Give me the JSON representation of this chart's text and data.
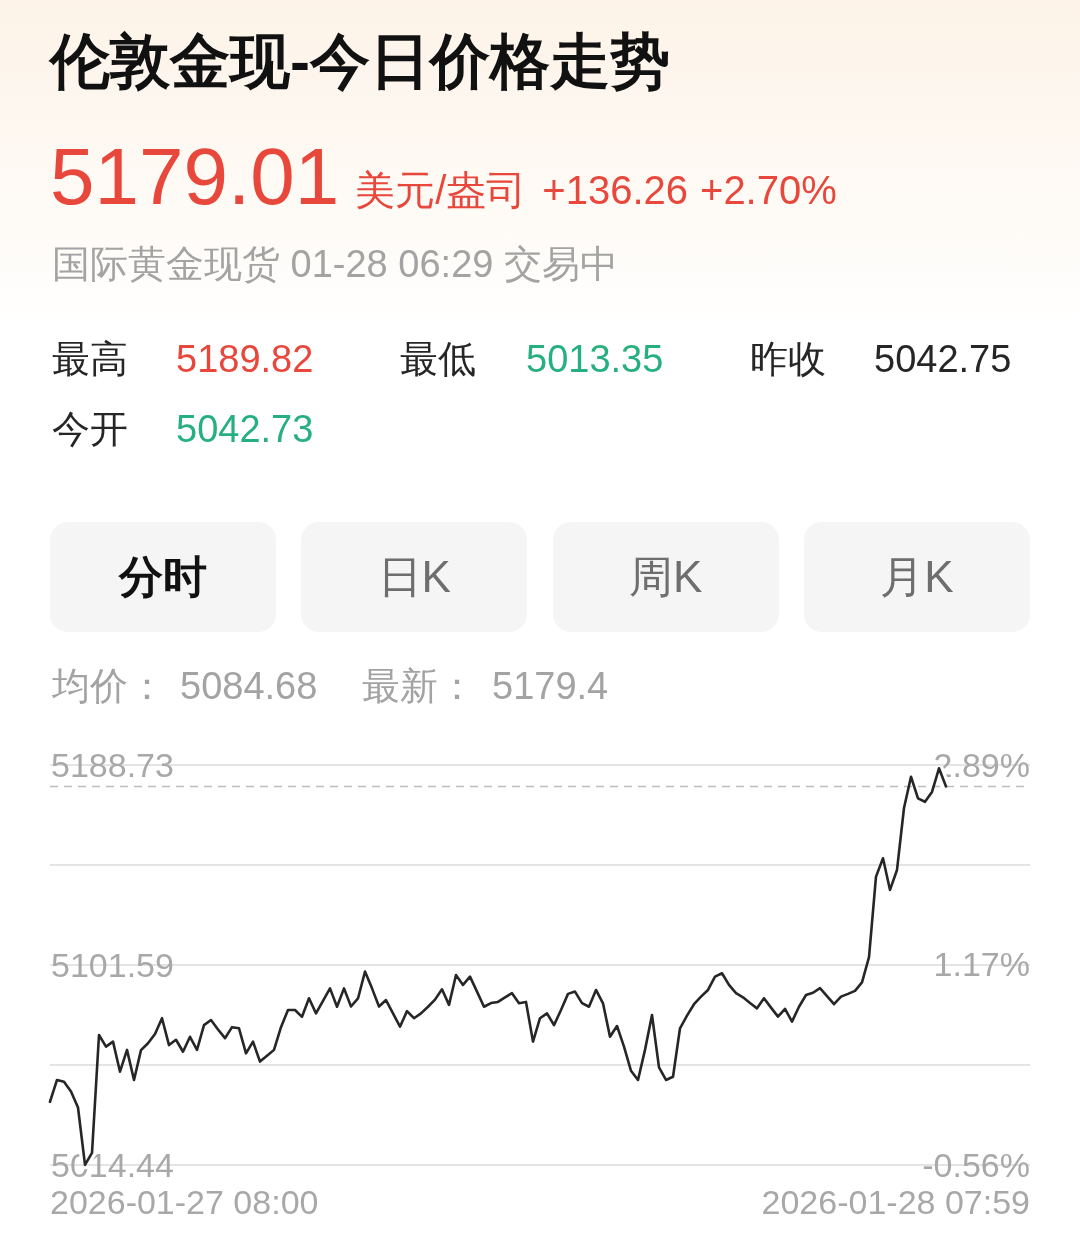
{
  "chart_data": {
    "type": "line",
    "title": "伦敦金现-今日价格走势",
    "subtitle": "国际黄金现货 01-28 06:29 交易中",
    "annotations": [
      "5179.01",
      "美元/盎司",
      "+136.26",
      "+2.70%",
      "最高",
      "5189.82",
      "最低",
      "5013.35",
      "昨收",
      "5042.75",
      "今开",
      "5042.73",
      "分时",
      "日K",
      "周K",
      "月K",
      "均价：",
      "5084.68",
      "最新：",
      "5179.4",
      "2026-01-27 08:00",
      "2026-01-28 07:59"
    ],
    "categories": [
      null,
      null,
      null,
      null,
      null,
      null,
      null,
      null,
      null,
      null,
      null,
      null,
      null,
      null,
      null,
      null,
      null,
      null,
      null,
      null,
      null,
      null,
      null,
      null,
      null,
      null,
      null,
      null,
      null,
      null,
      null,
      null,
      null,
      null,
      null,
      null,
      null,
      null,
      null,
      null,
      null,
      null,
      null,
      null,
      null,
      null,
      null,
      null,
      null,
      null,
      null,
      null,
      null,
      null,
      null,
      null,
      null,
      null,
      null,
      null,
      null,
      null,
      null,
      null,
      null,
      null,
      null,
      null,
      null,
      null,
      null,
      null,
      null,
      null,
      null,
      null,
      null,
      null,
      null,
      null,
      null,
      null,
      null,
      null,
      null,
      null,
      null,
      null,
      null,
      null,
      null,
      null,
      null,
      null,
      null,
      null,
      null,
      null,
      null,
      null,
      null,
      null,
      null,
      null,
      null,
      null,
      null,
      null,
      null,
      null,
      null,
      null,
      null,
      null,
      null,
      null,
      null,
      null,
      null,
      null,
      null,
      null,
      null,
      null,
      null,
      null,
      null,
      null,
      null,
      null,
      null,
      null,
      null,
      null,
      null,
      null,
      null,
      null,
      null,
      null,
      null
    ],
    "series": [
      {
        "color": "#262626",
        "values": [
          5042.0,
          5051.5,
          5050.7,
          5046.5,
          5039.5,
          5014.5,
          5019.7,
          5071.1,
          5066.0,
          5068.2,
          5055.1,
          5064.6,
          5051.5,
          5064.5,
          5067.5,
          5071.5,
          5078.4,
          5066.7,
          5069.0,
          5063.8,
          5070.3,
          5064.6,
          5075.4,
          5077.6,
          5073.5,
          5069.7,
          5074.5,
          5074.0,
          5063.1,
          5068.2,
          5059.5,
          5062.0,
          5064.6,
          5074.5,
          5082.0,
          5082.0,
          5079.0,
          5087.1,
          5080.5,
          5086.0,
          5091.4,
          5083.4,
          5091.4,
          5083.5,
          5087.0,
          5098.7,
          5091.4,
          5083.5,
          5086.3,
          5080.5,
          5074.7,
          5081.5,
          5078.4,
          5080.5,
          5083.4,
          5086.5,
          5091.0,
          5084.2,
          5097.2,
          5092.9,
          5096.5,
          5090.0,
          5083.4,
          5085.0,
          5085.5,
          5087.5,
          5089.3,
          5084.9,
          5085.5,
          5068.2,
          5078.4,
          5080.5,
          5075.4,
          5082.0,
          5089.0,
          5090.0,
          5085.0,
          5083.4,
          5090.7,
          5084.9,
          5070.3,
          5075.0,
          5066.0,
          5055.5,
          5051.5,
          5064.6,
          5079.8,
          5057.0,
          5051.5,
          5052.9,
          5074.0,
          5079.5,
          5084.5,
          5087.8,
          5090.7,
          5096.5,
          5098.0,
          5092.9,
          5089.3,
          5087.5,
          5085.0,
          5082.7,
          5087.1,
          5083.0,
          5079.1,
          5082.5,
          5076.9,
          5083.4,
          5088.5,
          5089.5,
          5091.5,
          5088.0,
          5084.5,
          5087.8,
          5089.0,
          5090.3,
          5094.0,
          5105.0,
          5140.1,
          5148.1,
          5134.3,
          5143.0,
          5170.0,
          5183.6,
          5174.2,
          5172.7,
          5177.0,
          5187.3,
          5179.4,
          null,
          null,
          null,
          null,
          null,
          null,
          null,
          null,
          null,
          null,
          null,
          null
        ]
      }
    ],
    "ylim": [
      5014.44,
      5188.73
    ],
    "yticks": [
      5188.73,
      {
        "value": 5145.16,
        "label": null
      },
      5101.59,
      {
        "value": 5058.01,
        "label": null
      },
      5014.44
    ],
    "y2lim": [
      -0.56,
      2.89
    ],
    "y2ticks": [
      {
        "value": 2.89,
        "label": "2.89%"
      },
      {
        "value": 1.17,
        "label": "1.17%"
      },
      {
        "value": -0.56,
        "label": "-0.56%"
      }
    ],
    "grid": "y",
    "ref_lines": [
      {
        "axis": "y",
        "value": 5179.4,
        "line_style": "dashed",
        "color": "#bdbdbd"
      }
    ]
  }
}
